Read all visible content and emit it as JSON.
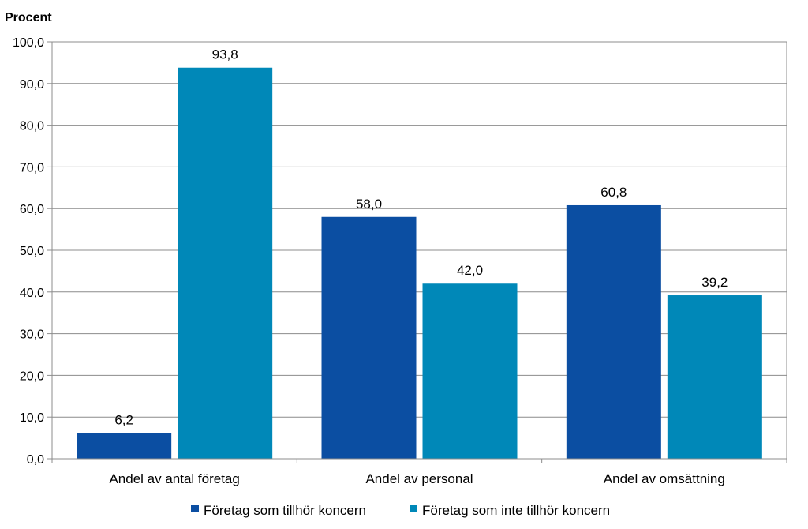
{
  "chart_data": {
    "type": "bar",
    "title": "",
    "ylabel": "Procent",
    "xlabel": "",
    "ylim": [
      0,
      100
    ],
    "ytick_step": 10,
    "yticks": [
      "0,0",
      "10,0",
      "20,0",
      "30,0",
      "40,0",
      "50,0",
      "60,0",
      "70,0",
      "80,0",
      "90,0",
      "100,0"
    ],
    "grid": true,
    "legend_position": "bottom",
    "categories": [
      "Andel av antal företag",
      "Andel av personal",
      "Andel av omsättning"
    ],
    "series": [
      {
        "name": "Företag som tillhör koncern",
        "color": "#0b4ea2",
        "values": [
          6.2,
          58.0,
          60.8
        ],
        "labels": [
          "6,2",
          "58,0",
          "60,8"
        ]
      },
      {
        "name": "Företag som inte tillhör koncern",
        "color": "#0088b8",
        "values": [
          93.8,
          42.0,
          39.2
        ],
        "labels": [
          "93,8",
          "42,0",
          "39,2"
        ]
      }
    ]
  }
}
